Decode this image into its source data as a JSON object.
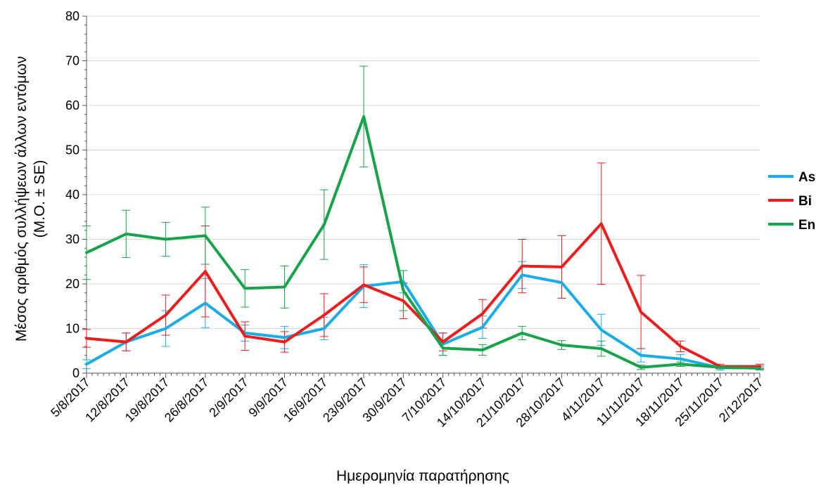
{
  "chart_data": {
    "type": "line",
    "title": "",
    "xlabel": "Ημερομηνία παρατήρησης",
    "ylabel": "Μέσος αριθμός συλλήψεων άλλων εντόμων",
    "ylabel2": "(Μ.Ο. ± SE)",
    "ylim": [
      0,
      80
    ],
    "yticks": [
      0,
      10,
      20,
      30,
      40,
      50,
      60,
      70,
      80
    ],
    "grid": true,
    "legend_position": "right",
    "categories": [
      "5/8/2017",
      "12/8/2017",
      "19/8/2017",
      "26/8/2017",
      "2/9/2017",
      "9/9/2017",
      "16/9/2017",
      "23/9/2017",
      "30/9/2017",
      "7/10/2017",
      "14/10/2017",
      "21/10/2017",
      "28/10/2017",
      "4/11/2017",
      "11/11/2017",
      "18/11/2017",
      "25/11/2017",
      "2/12/2017"
    ],
    "series": [
      {
        "name": "As",
        "color": "#1aace6",
        "values": [
          2,
          7,
          10,
          15.7,
          9,
          8,
          10,
          19.5,
          20.5,
          6.5,
          10.3,
          22,
          20.3,
          9.7,
          4,
          3.2,
          1.2,
          1.2
        ],
        "err": [
          1,
          2,
          4,
          5.5,
          1.8,
          2.5,
          2.5,
          4.8,
          2.5,
          2.5,
          2.5,
          3,
          3.5,
          3.5,
          1.5,
          1,
          0.5,
          0.5
        ]
      },
      {
        "name": "Bi",
        "color": "#ee1c1c",
        "values": [
          7.8,
          7,
          13,
          22.8,
          8.3,
          7,
          13,
          19.8,
          16.2,
          7,
          13.3,
          24,
          23.8,
          33.5,
          13.7,
          6,
          1.5,
          1.5
        ],
        "err": [
          2,
          2,
          4.5,
          10.2,
          3.2,
          2.3,
          4.8,
          4,
          4,
          2,
          3.2,
          6,
          7,
          13.6,
          8.2,
          1.2,
          0.5,
          0.5
        ]
      },
      {
        "name": "En",
        "color": "#17a34a",
        "values": [
          27,
          31.2,
          30,
          30.8,
          19,
          19.3,
          33.3,
          57.5,
          18.5,
          5.6,
          5.2,
          9,
          6.3,
          5.5,
          1.3,
          2,
          1.3,
          1.1
        ],
        "err": [
          6,
          5.3,
          3.8,
          6.4,
          4.2,
          4.7,
          7.8,
          11.3,
          4.5,
          1.6,
          1.2,
          1.5,
          1,
          1.7,
          0.5,
          0.5,
          0.3,
          0.3
        ]
      }
    ]
  }
}
